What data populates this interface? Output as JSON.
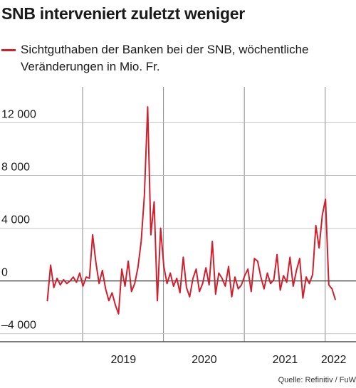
{
  "chart_data": {
    "type": "line",
    "title": "SNB interveniert zuletzt weniger",
    "legend_text": "Sichtguthaben der Banken bei der SNB, wöchentliche Veränderungen in Mio. Fr.",
    "series": [
      {
        "color": "#d0202e",
        "x": [
          2018.56,
          2018.6,
          2018.64,
          2018.68,
          2018.72,
          2018.76,
          2018.8,
          2018.84,
          2018.88,
          2018.92,
          2018.96,
          2019.0,
          2019.04,
          2019.08,
          2019.12,
          2019.16,
          2019.2,
          2019.24,
          2019.28,
          2019.32,
          2019.36,
          2019.4,
          2019.44,
          2019.48,
          2019.52,
          2019.56,
          2019.6,
          2019.64,
          2019.68,
          2019.72,
          2019.76,
          2019.8,
          2019.84,
          2019.88,
          2019.92,
          2019.96,
          2020.0,
          2020.04,
          2020.08,
          2020.12,
          2020.16,
          2020.2,
          2020.24,
          2020.28,
          2020.32,
          2020.36,
          2020.4,
          2020.44,
          2020.48,
          2020.52,
          2020.56,
          2020.6,
          2020.64,
          2020.68,
          2020.72,
          2020.76,
          2020.8,
          2020.84,
          2020.88,
          2020.92,
          2020.96,
          2021.0,
          2021.04,
          2021.08,
          2021.12,
          2021.16,
          2021.2,
          2021.24,
          2021.28,
          2021.32,
          2021.36,
          2021.4,
          2021.44,
          2021.48,
          2021.52,
          2021.56,
          2021.6,
          2021.64,
          2021.68,
          2021.72,
          2021.76,
          2021.8,
          2021.84,
          2021.88,
          2021.92,
          2021.96,
          2022.0,
          2022.04,
          2022.08,
          2022.12
        ],
        "y": [
          -1500,
          1200,
          -500,
          200,
          -300,
          100,
          -200,
          0,
          300,
          -100,
          600,
          -400,
          300,
          200,
          3500,
          1400,
          -200,
          800,
          -600,
          -1500,
          -900,
          -1800,
          -2500,
          900,
          -400,
          1500,
          -800,
          -200,
          1000,
          3000,
          6500,
          13200,
          3500,
          6000,
          -1500,
          4000,
          1100,
          -200,
          600,
          -400,
          200,
          -900,
          1800,
          -500,
          -1200,
          200,
          900,
          -800,
          -200,
          1000,
          -300,
          3000,
          -1000,
          600,
          200,
          -400,
          1100,
          -1200,
          300,
          -600,
          -300,
          400,
          900,
          -800,
          1700,
          1500,
          300,
          -600,
          600,
          -200,
          100,
          2000,
          -700,
          400,
          -100,
          1800,
          -400,
          800,
          1700,
          -1300,
          300,
          -200,
          500,
          4200,
          2500,
          5000,
          6200,
          -300,
          -600,
          -1400
        ]
      }
    ],
    "y_ticks": [
      "12 000",
      "8 000",
      "4 000",
      "0",
      "–4 000"
    ],
    "y_tick_values": [
      12000,
      8000,
      4000,
      0,
      -4000
    ],
    "x_ticks": [
      "2019",
      "2020",
      "2021",
      "2022"
    ],
    "x_tick_values": [
      2019.0,
      2020.0,
      2021.0,
      2022.0
    ],
    "ylim": [
      -4500,
      14500
    ],
    "xlim": [
      2018.52,
      2022.35
    ],
    "grid": "horizontal",
    "source": "Quelle: Refinitiv / FuW"
  }
}
